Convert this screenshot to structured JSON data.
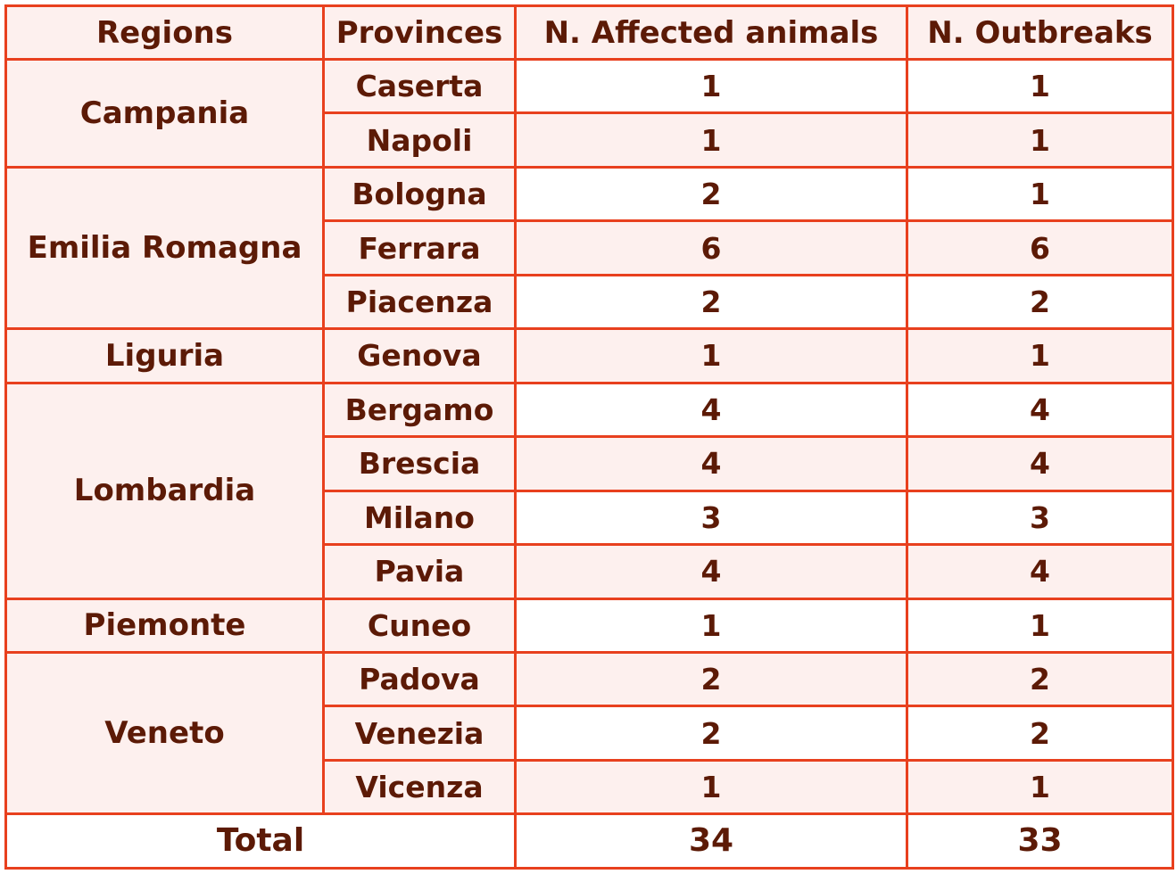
{
  "chart_data": {
    "type": "table",
    "columns": [
      "Regions",
      "Provinces",
      "N. Affected animals",
      "N. Outbreaks"
    ],
    "groups": [
      {
        "region": "Campania",
        "rows": [
          {
            "province": "Caserta",
            "affected": 1,
            "outbreaks": 1
          },
          {
            "province": "Napoli",
            "affected": 1,
            "outbreaks": 1
          }
        ]
      },
      {
        "region": "Emilia Romagna",
        "rows": [
          {
            "province": "Bologna",
            "affected": 2,
            "outbreaks": 1
          },
          {
            "province": "Ferrara",
            "affected": 6,
            "outbreaks": 6
          },
          {
            "province": "Piacenza",
            "affected": 2,
            "outbreaks": 2
          }
        ]
      },
      {
        "region": "Liguria",
        "rows": [
          {
            "province": "Genova",
            "affected": 1,
            "outbreaks": 1
          }
        ]
      },
      {
        "region": "Lombardia",
        "rows": [
          {
            "province": "Bergamo",
            "affected": 4,
            "outbreaks": 4
          },
          {
            "province": "Brescia",
            "affected": 4,
            "outbreaks": 4
          },
          {
            "province": "Milano",
            "affected": 3,
            "outbreaks": 3
          },
          {
            "province": "Pavia",
            "affected": 4,
            "outbreaks": 4
          }
        ]
      },
      {
        "region": "Piemonte",
        "rows": [
          {
            "province": "Cuneo",
            "affected": 1,
            "outbreaks": 1
          }
        ]
      },
      {
        "region": "Veneto",
        "rows": [
          {
            "province": "Padova",
            "affected": 2,
            "outbreaks": 2
          },
          {
            "province": "Venezia",
            "affected": 2,
            "outbreaks": 2
          },
          {
            "province": "Vicenza",
            "affected": 1,
            "outbreaks": 1
          }
        ]
      }
    ],
    "total": {
      "label": "Total",
      "affected": 34,
      "outbreaks": 33
    }
  },
  "colors": {
    "border": "#e8401e",
    "text": "#5c1a06",
    "shaded": "#fdf0ee",
    "plain": "#ffffff"
  }
}
